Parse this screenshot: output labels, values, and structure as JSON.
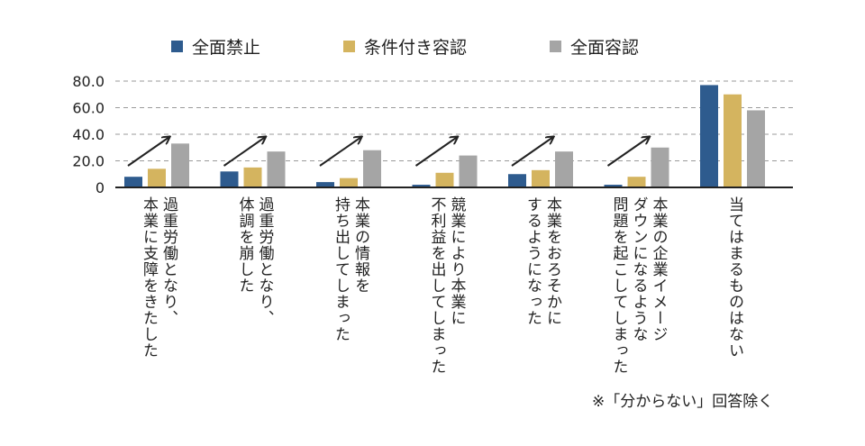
{
  "chart_data": {
    "type": "bar",
    "categories": [
      [
        "過重労働となり、",
        "本業に支障をきたした"
      ],
      [
        "過重労働となり、",
        "体調を崩した"
      ],
      [
        "本業の情報を",
        "持ち出してしまった"
      ],
      [
        "競業により本業に",
        "不利益を出してしまった"
      ],
      [
        "本業をおろそかに",
        "するようになった"
      ],
      [
        "本業の企業イメージ",
        "ダウンになるような",
        "問題を起こしてしまった"
      ],
      [
        "当てはまるものはない"
      ]
    ],
    "series": [
      {
        "name": "全面禁止",
        "color": "#2e5b8e",
        "values": [
          8,
          12,
          4,
          2,
          10,
          2,
          77
        ]
      },
      {
        "name": "条件付き容認",
        "color": "#d4b45f",
        "values": [
          14,
          15,
          7,
          11,
          13,
          8,
          70
        ]
      },
      {
        "name": "全面容認",
        "color": "#a5a5a5",
        "values": [
          33,
          27,
          28,
          24,
          27,
          30,
          58
        ]
      }
    ],
    "yticks": [
      "0",
      "20.0",
      "40.0",
      "60.0",
      "80.0"
    ],
    "ylim": [
      0,
      80
    ],
    "grid": true,
    "legend_position": "top",
    "trend_arrows": true
  },
  "footnote": "※「分からない」回答除く"
}
